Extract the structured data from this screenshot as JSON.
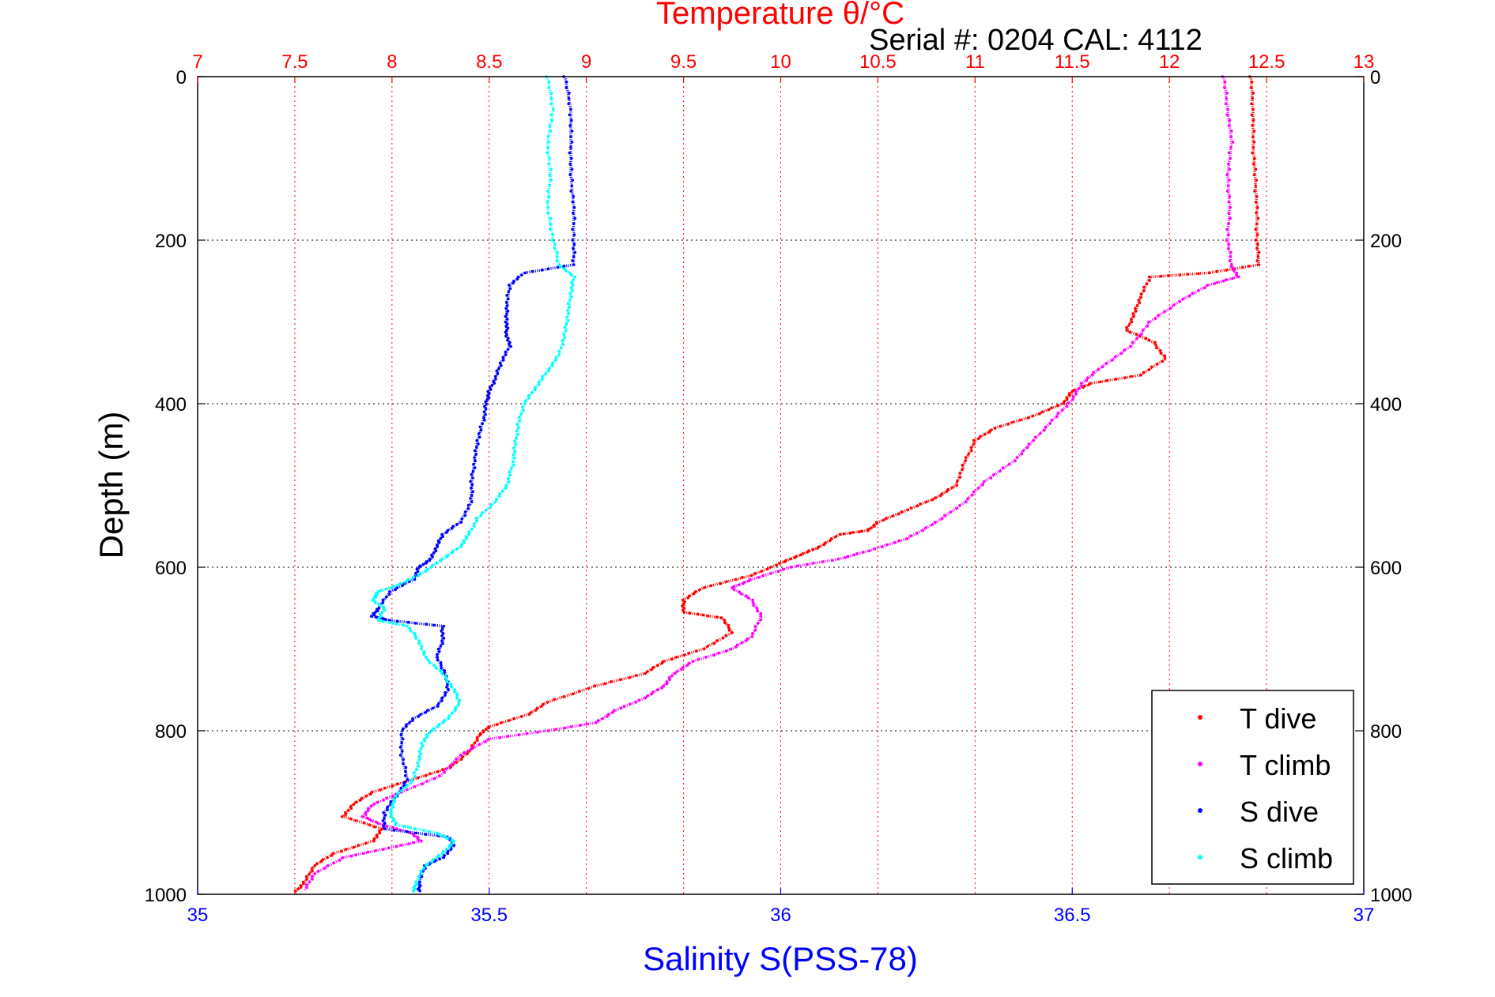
{
  "chart_data": {
    "type": "scatter",
    "title": "Temperature θ/°C",
    "subtitle": "Serial #: 0204  CAL: 4112",
    "xlabel": "Salinity S(PSS-78)",
    "ylabel": "Depth (m)",
    "temperature_axis": {
      "label": "Temperature θ/°C",
      "range": [
        7,
        13
      ],
      "ticks": [
        "7",
        "7.5",
        "8",
        "8.5",
        "9",
        "9.5",
        "10",
        "10.5",
        "11",
        "11.5",
        "12",
        "12.5",
        "13"
      ],
      "color": "#ff0000"
    },
    "salinity_axis": {
      "label": "Salinity S(PSS-78)",
      "range": [
        35,
        37
      ],
      "ticks": [
        "35",
        "35.5",
        "36",
        "36.5",
        "37"
      ],
      "color": "#0000ff"
    },
    "depth_axis": {
      "range": [
        0,
        1000
      ],
      "reversed": true,
      "ticks": [
        "0",
        "200",
        "400",
        "600",
        "800",
        "1000"
      ]
    },
    "grid": true,
    "legend_position": "bottom-right",
    "series": [
      {
        "name": "T dive",
        "axis": "temperature",
        "color": "#ff0000",
        "points": [
          [
            12.42,
            0
          ],
          [
            12.43,
            40
          ],
          [
            12.43,
            80
          ],
          [
            12.44,
            120
          ],
          [
            12.45,
            160
          ],
          [
            12.45,
            200
          ],
          [
            12.46,
            230
          ],
          [
            12.2,
            240
          ],
          [
            11.9,
            245
          ],
          [
            11.85,
            270
          ],
          [
            11.82,
            290
          ],
          [
            11.78,
            310
          ],
          [
            11.92,
            325
          ],
          [
            11.98,
            345
          ],
          [
            11.85,
            365
          ],
          [
            11.6,
            375
          ],
          [
            11.5,
            385
          ],
          [
            11.45,
            400
          ],
          [
            11.3,
            415
          ],
          [
            11.1,
            430
          ],
          [
            11.0,
            445
          ],
          [
            10.95,
            470
          ],
          [
            10.9,
            500
          ],
          [
            10.8,
            515
          ],
          [
            10.65,
            530
          ],
          [
            10.5,
            545
          ],
          [
            10.45,
            555
          ],
          [
            10.3,
            560
          ],
          [
            10.2,
            575
          ],
          [
            10.1,
            585
          ],
          [
            10.0,
            595
          ],
          [
            9.85,
            610
          ],
          [
            9.6,
            625
          ],
          [
            9.5,
            640
          ],
          [
            9.5,
            655
          ],
          [
            9.7,
            662
          ],
          [
            9.75,
            680
          ],
          [
            9.6,
            700
          ],
          [
            9.4,
            715
          ],
          [
            9.3,
            730
          ],
          [
            9.05,
            745
          ],
          [
            8.8,
            765
          ],
          [
            8.7,
            780
          ],
          [
            8.5,
            795
          ],
          [
            8.45,
            805
          ],
          [
            8.4,
            825
          ],
          [
            8.3,
            845
          ],
          [
            8.1,
            860
          ],
          [
            7.9,
            875
          ],
          [
            7.8,
            890
          ],
          [
            7.75,
            905
          ],
          [
            7.95,
            920
          ],
          [
            7.9,
            935
          ],
          [
            7.7,
            950
          ],
          [
            7.6,
            965
          ],
          [
            7.55,
            985
          ],
          [
            7.5,
            998
          ]
        ]
      },
      {
        "name": "T climb",
        "axis": "temperature",
        "color": "#ff00ff",
        "points": [
          [
            12.28,
            0
          ],
          [
            12.3,
            40
          ],
          [
            12.32,
            80
          ],
          [
            12.3,
            120
          ],
          [
            12.31,
            160
          ],
          [
            12.3,
            200
          ],
          [
            12.32,
            230
          ],
          [
            12.35,
            245
          ],
          [
            12.2,
            255
          ],
          [
            12.05,
            275
          ],
          [
            11.9,
            300
          ],
          [
            11.8,
            330
          ],
          [
            11.65,
            355
          ],
          [
            11.55,
            375
          ],
          [
            11.5,
            395
          ],
          [
            11.4,
            420
          ],
          [
            11.3,
            445
          ],
          [
            11.2,
            470
          ],
          [
            11.05,
            495
          ],
          [
            10.95,
            520
          ],
          [
            10.8,
            545
          ],
          [
            10.65,
            565
          ],
          [
            10.45,
            580
          ],
          [
            10.3,
            590
          ],
          [
            10.05,
            600
          ],
          [
            9.85,
            615
          ],
          [
            9.75,
            625
          ],
          [
            9.85,
            640
          ],
          [
            9.9,
            660
          ],
          [
            9.85,
            685
          ],
          [
            9.75,
            700
          ],
          [
            9.55,
            715
          ],
          [
            9.45,
            730
          ],
          [
            9.4,
            745
          ],
          [
            9.3,
            760
          ],
          [
            9.15,
            775
          ],
          [
            9.05,
            790
          ],
          [
            8.8,
            800
          ],
          [
            8.5,
            810
          ],
          [
            8.35,
            830
          ],
          [
            8.25,
            855
          ],
          [
            8.05,
            875
          ],
          [
            7.9,
            890
          ],
          [
            7.85,
            905
          ],
          [
            7.95,
            915
          ],
          [
            8.1,
            925
          ],
          [
            8.15,
            935
          ],
          [
            7.95,
            945
          ],
          [
            7.75,
            955
          ],
          [
            7.6,
            975
          ],
          [
            7.55,
            995
          ]
        ]
      },
      {
        "name": "S dive",
        "axis": "salinity",
        "color": "#0000ff",
        "points": [
          [
            35.63,
            0
          ],
          [
            35.64,
            40
          ],
          [
            35.64,
            80
          ],
          [
            35.64,
            120
          ],
          [
            35.645,
            160
          ],
          [
            35.645,
            200
          ],
          [
            35.645,
            230
          ],
          [
            35.56,
            240
          ],
          [
            35.535,
            255
          ],
          [
            35.53,
            280
          ],
          [
            35.53,
            300
          ],
          [
            35.53,
            315
          ],
          [
            35.535,
            330
          ],
          [
            35.52,
            350
          ],
          [
            35.51,
            370
          ],
          [
            35.5,
            385
          ],
          [
            35.495,
            400
          ],
          [
            35.49,
            420
          ],
          [
            35.48,
            445
          ],
          [
            35.475,
            470
          ],
          [
            35.47,
            495
          ],
          [
            35.47,
            520
          ],
          [
            35.45,
            545
          ],
          [
            35.42,
            560
          ],
          [
            35.41,
            575
          ],
          [
            35.4,
            590
          ],
          [
            35.38,
            600
          ],
          [
            35.37,
            615
          ],
          [
            35.33,
            630
          ],
          [
            35.31,
            650
          ],
          [
            35.3,
            660
          ],
          [
            35.33,
            665
          ],
          [
            35.42,
            672
          ],
          [
            35.42,
            690
          ],
          [
            35.41,
            710
          ],
          [
            35.425,
            730
          ],
          [
            35.43,
            750
          ],
          [
            35.41,
            770
          ],
          [
            35.37,
            785
          ],
          [
            35.35,
            800
          ],
          [
            35.35,
            830
          ],
          [
            35.36,
            860
          ],
          [
            35.34,
            880
          ],
          [
            35.32,
            900
          ],
          [
            35.32,
            920
          ],
          [
            35.43,
            930
          ],
          [
            35.44,
            940
          ],
          [
            35.42,
            955
          ],
          [
            35.39,
            965
          ],
          [
            35.38,
            985
          ],
          [
            35.38,
            998
          ]
        ]
      },
      {
        "name": "S climb",
        "axis": "salinity",
        "color": "#00ffff",
        "points": [
          [
            35.6,
            0
          ],
          [
            35.61,
            40
          ],
          [
            35.6,
            80
          ],
          [
            35.605,
            120
          ],
          [
            35.6,
            160
          ],
          [
            35.61,
            200
          ],
          [
            35.62,
            230
          ],
          [
            35.645,
            245
          ],
          [
            35.64,
            265
          ],
          [
            35.635,
            290
          ],
          [
            35.63,
            315
          ],
          [
            35.62,
            340
          ],
          [
            35.6,
            360
          ],
          [
            35.58,
            380
          ],
          [
            35.56,
            400
          ],
          [
            35.55,
            425
          ],
          [
            35.545,
            450
          ],
          [
            35.54,
            475
          ],
          [
            35.53,
            500
          ],
          [
            35.51,
            520
          ],
          [
            35.48,
            540
          ],
          [
            35.465,
            560
          ],
          [
            35.45,
            575
          ],
          [
            35.42,
            590
          ],
          [
            35.39,
            605
          ],
          [
            35.35,
            620
          ],
          [
            35.31,
            630
          ],
          [
            35.3,
            640
          ],
          [
            35.32,
            650
          ],
          [
            35.31,
            665
          ],
          [
            35.36,
            672
          ],
          [
            35.38,
            690
          ],
          [
            35.39,
            710
          ],
          [
            35.42,
            730
          ],
          [
            35.44,
            750
          ],
          [
            35.45,
            765
          ],
          [
            35.43,
            785
          ],
          [
            35.4,
            800
          ],
          [
            35.385,
            815
          ],
          [
            35.38,
            835
          ],
          [
            35.37,
            860
          ],
          [
            35.34,
            880
          ],
          [
            35.33,
            900
          ],
          [
            35.34,
            915
          ],
          [
            35.41,
            925
          ],
          [
            35.44,
            935
          ],
          [
            35.42,
            950
          ],
          [
            35.39,
            965
          ],
          [
            35.375,
            985
          ],
          [
            35.37,
            998
          ]
        ]
      }
    ]
  }
}
